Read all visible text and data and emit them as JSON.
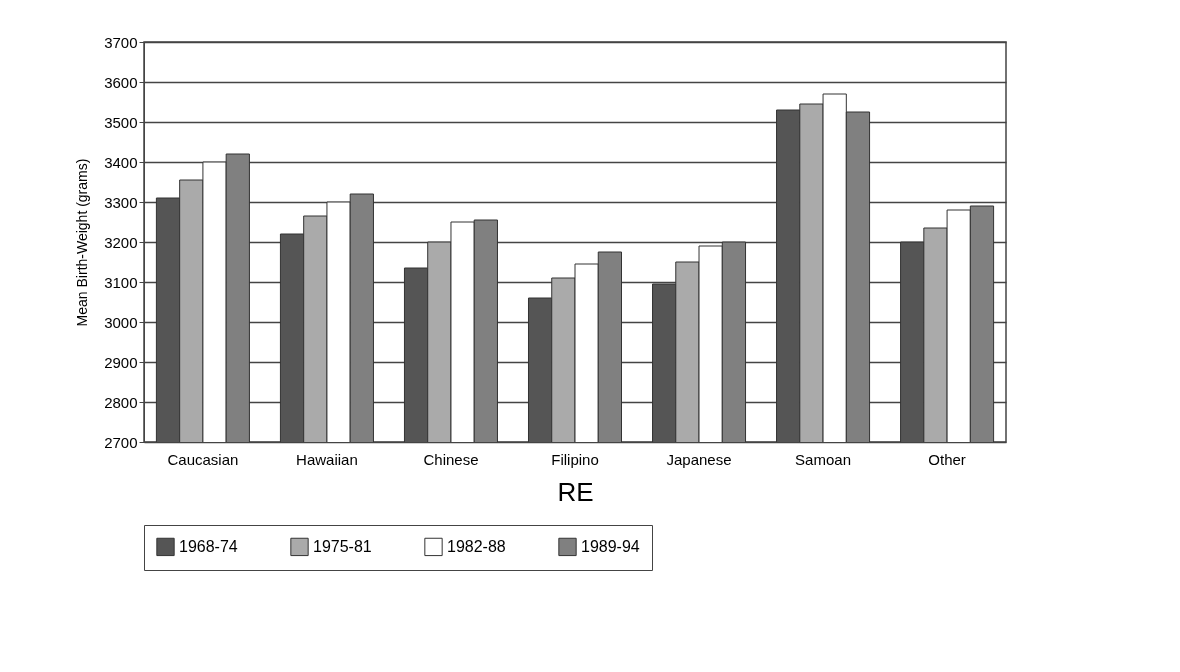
{
  "chart_data": {
    "type": "bar",
    "xlabel": "RE",
    "ylabel": "Mean Birth-Weight (grams)",
    "categories": [
      "Caucasian",
      "Hawaiian",
      "Chinese",
      "Filipino",
      "Japanese",
      "Samoan",
      "Other"
    ],
    "series": [
      {
        "name": "1968-74",
        "color": "#555555",
        "values": [
          3310,
          3220,
          3135,
          3060,
          3095,
          3530,
          3200
        ]
      },
      {
        "name": "1975-81",
        "color": "#aaaaaa",
        "values": [
          3355,
          3265,
          3200,
          3110,
          3150,
          3545,
          3235
        ]
      },
      {
        "name": "1982-88",
        "color": "#ffffff",
        "values": [
          3400,
          3300,
          3250,
          3145,
          3190,
          3570,
          3280
        ]
      },
      {
        "name": "1989-94",
        "color": "#808080",
        "values": [
          3420,
          3320,
          3255,
          3175,
          3200,
          3525,
          3290
        ]
      }
    ],
    "ylim": [
      2700,
      3700
    ],
    "yticks": [
      2700,
      2800,
      2900,
      3000,
      3100,
      3200,
      3300,
      3400,
      3500,
      3600,
      3700
    ],
    "grid": "y",
    "legend": "bottom"
  }
}
